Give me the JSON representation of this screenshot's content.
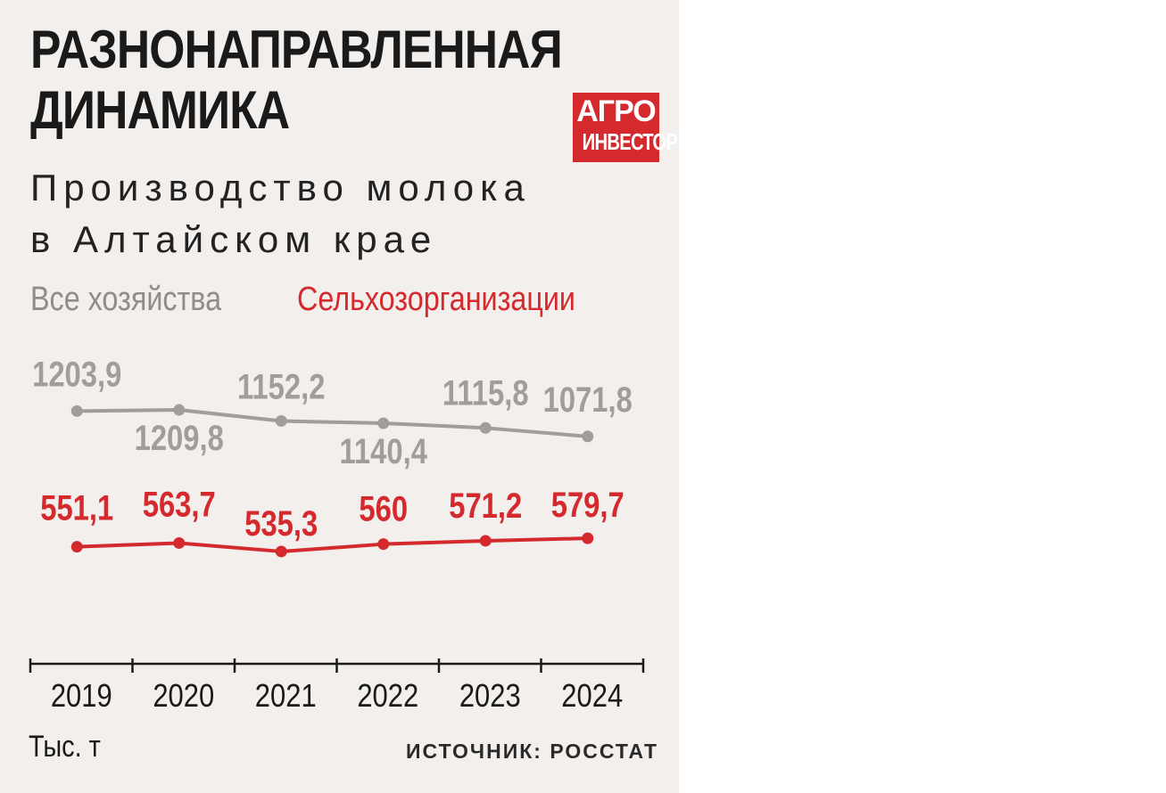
{
  "header": {
    "title_line1": "РАЗНОНАПРАВЛЕННАЯ",
    "title_line2": "ДИНАМИКА",
    "subtitle_line1": "Производство молока",
    "subtitle_line2": "в Алтайском крае",
    "logo_line1": "АГРО",
    "logo_line2": "ИНВЕСТОР"
  },
  "footer": {
    "unit": "Тыс. т",
    "source": "ИСТОЧНИК: РОССТАТ"
  },
  "colors": {
    "background": "#f2efec",
    "series_all": "#a09d9a",
    "series_org": "#d42a2e",
    "axis": "#1a1a1a"
  },
  "chart_data": {
    "type": "line",
    "categories": [
      "2019",
      "2020",
      "2021",
      "2022",
      "2023",
      "2024"
    ],
    "series": [
      {
        "name": "Все хозяйства",
        "values": [
          1203.9,
          1209.8,
          1152.2,
          1140.4,
          1115.8,
          1071.8
        ],
        "labels": [
          "1203,9",
          "1209,8",
          "1152,2",
          "1140,4",
          "1115,8",
          "1071,8"
        ]
      },
      {
        "name": "Сельхозорганизации",
        "values": [
          551.1,
          563.7,
          535.3,
          560,
          571.2,
          579.7
        ],
        "labels": [
          "551,1",
          "563,7",
          "535,3",
          "560",
          "571,2",
          "579,7"
        ]
      }
    ],
    "ylabel": "Тыс. т",
    "grid": false,
    "legend": "top-left"
  }
}
